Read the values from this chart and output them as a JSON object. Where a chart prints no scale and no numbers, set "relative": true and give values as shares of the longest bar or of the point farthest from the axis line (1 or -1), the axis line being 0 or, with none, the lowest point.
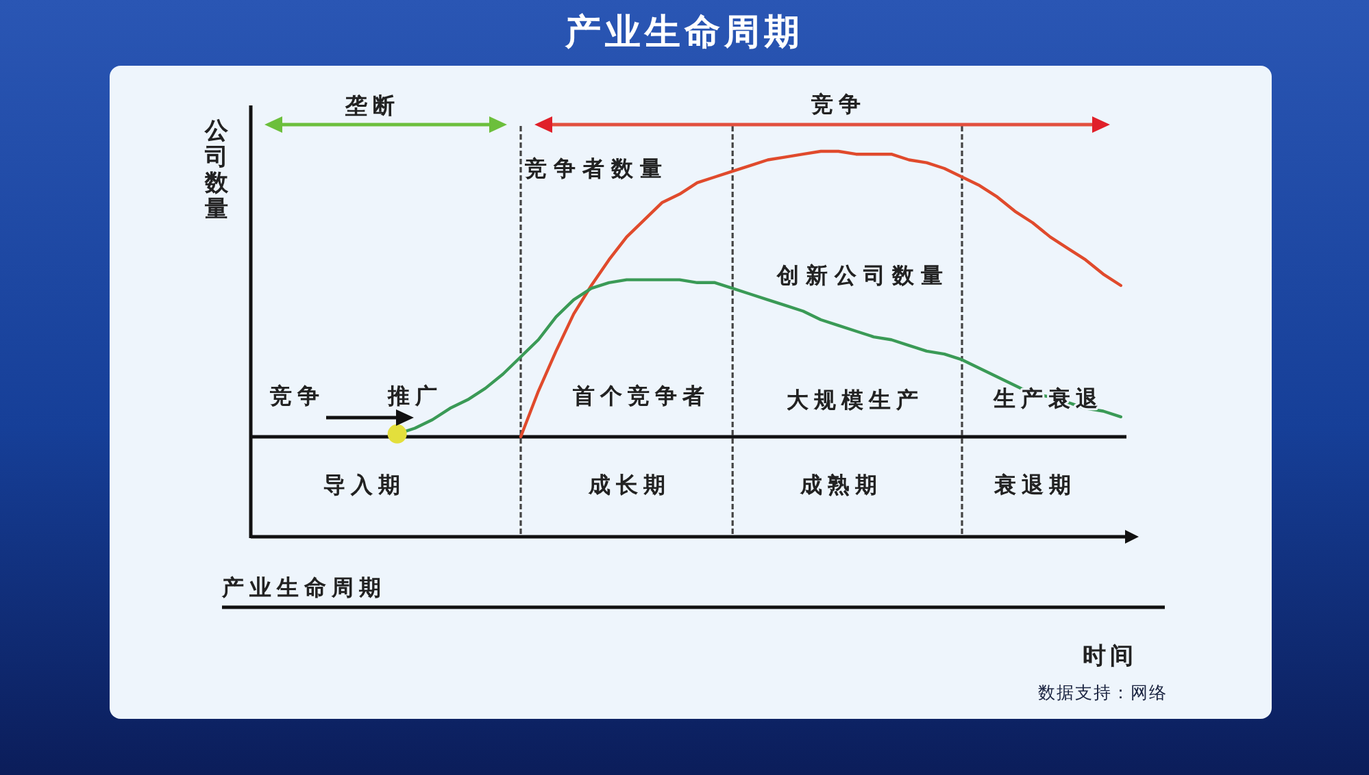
{
  "chart_data": {
    "type": "line",
    "title": "产业生命周期",
    "ylabel": "公司数量",
    "relative": true,
    "categories": [
      null,
      null,
      null,
      null,
      null,
      null,
      "导入期",
      null,
      null,
      null,
      null,
      null,
      null,
      null,
      null,
      null,
      null,
      null,
      null,
      null,
      null,
      "成长期",
      null,
      null,
      null,
      null,
      null,
      null,
      null,
      null,
      null,
      null,
      null,
      "成熟期",
      null,
      null,
      null,
      null,
      null,
      null,
      null,
      null,
      null,
      null,
      "衰退期",
      null,
      null,
      null,
      null,
      null
    ],
    "series": [
      {
        "name": "竞争者数量",
        "color": "#e04a2c",
        "values": [
          null,
          null,
          null,
          null,
          null,
          null,
          null,
          null,
          null,
          null,
          null,
          null,
          null,
          null,
          null,
          0,
          0.16,
          0.3,
          0.43,
          0.53,
          0.62,
          0.7,
          0.76,
          0.82,
          0.85,
          0.89,
          0.91,
          0.93,
          0.95,
          0.97,
          0.98,
          0.99,
          1,
          1,
          0.99,
          0.99,
          0.99,
          0.97,
          0.96,
          0.94,
          0.91,
          0.88,
          0.84,
          0.79,
          0.75,
          0.7,
          0.66,
          0.62,
          0.57,
          0.53
        ]
      },
      {
        "name": "创新公司数量",
        "color": "#3a9a56",
        "values": [
          null,
          null,
          null,
          null,
          null,
          null,
          null,
          null,
          0.01,
          0.03,
          0.06,
          0.1,
          0.13,
          0.17,
          0.22,
          0.28,
          0.34,
          0.42,
          0.48,
          0.52,
          0.54,
          0.55,
          0.55,
          0.55,
          0.55,
          0.54,
          0.54,
          0.52,
          0.5,
          0.48,
          0.46,
          0.44,
          0.41,
          0.39,
          0.37,
          0.35,
          0.34,
          0.32,
          0.3,
          0.29,
          0.27,
          0.24,
          0.21,
          0.18,
          0.15,
          0.14,
          0.12,
          0.1,
          0.09,
          0.07
        ]
      },
      {
        "type": "scatter",
        "color": "#e3df3c",
        "values": [
          null,
          null,
          null,
          null,
          null,
          null,
          null,
          null,
          0.01,
          null,
          null,
          null,
          null,
          null,
          null,
          null,
          null,
          null,
          null,
          null,
          null,
          null,
          null,
          null,
          null,
          null,
          null,
          null,
          null,
          null,
          null,
          null,
          null,
          null,
          null,
          null,
          null,
          null,
          null,
          null,
          null,
          null,
          null,
          null,
          null,
          null,
          null,
          null,
          null,
          null
        ]
      }
    ],
    "annotations": [
      "垄断",
      "竞争",
      "竞争",
      "推广",
      "首个竞争者",
      "大规模生产",
      "生产衰退",
      "产业生命周期",
      "时间",
      "数据支持：网络"
    ]
  }
}
